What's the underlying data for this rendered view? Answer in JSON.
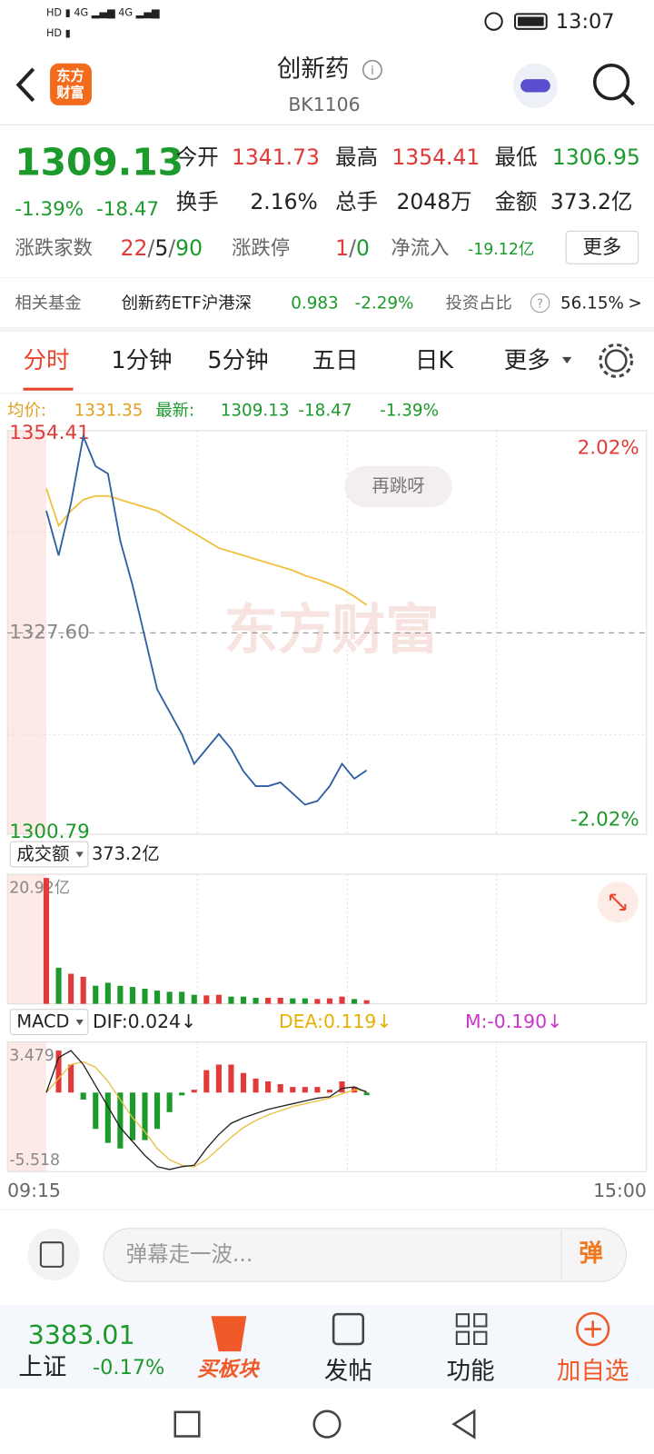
{
  "status_bar": {
    "time": "13:07"
  },
  "header": {
    "logo": [
      "东方",
      "财富"
    ],
    "title": "创新药",
    "code": "BK1106"
  },
  "quote": {
    "price": "1309.13",
    "change_pct": "-1.39%",
    "change": "-18.47",
    "fields": [
      {
        "label": "今开",
        "value": "1341.73"
      },
      {
        "label": "最高",
        "value": "1354.41"
      },
      {
        "label": "最低",
        "value": "1306.95"
      },
      {
        "label": "换手",
        "value": "2.16%"
      },
      {
        "label": "总手",
        "value": "2048万"
      },
      {
        "label": "金额",
        "value": "373.2亿"
      }
    ],
    "breadth": {
      "label": "涨跌家数",
      "up": "22",
      "flat": "5",
      "down": "90",
      "separator": "/"
    },
    "limits": {
      "label": "涨跌停",
      "up": "1",
      "down": "0",
      "separator": "/"
    },
    "net_inflow": {
      "label": "净流入",
      "value": "-19.12亿"
    },
    "more_button": "更多"
  },
  "fund": {
    "label": "相关基金",
    "name": "创新药ETF沪港深",
    "price": "0.983",
    "change_pct": "-2.29%",
    "ratio_label": "投资占比",
    "help": "?",
    "ratio": "56.15%",
    "arrow": ">"
  },
  "tabs": [
    "分时",
    "1分钟",
    "5分钟",
    "五日",
    "日K",
    "更多"
  ],
  "info_line": {
    "avg_label": "均价:",
    "avg": "1331.35",
    "latest_label": "最新:",
    "latest": "1309.13",
    "change": "-18.47",
    "change_pct": "-1.39%"
  },
  "price_chart": {
    "ylim": [
      1300.79,
      1354.41
    ],
    "yticks": [
      1354.41,
      {
        "value": 1327.6,
        "label": "1327.60"
      },
      1300.79
    ],
    "right_ticks": [
      "2.02%",
      "-2.02%"
    ],
    "watermark": "东方财富",
    "bubble": "再跳呀",
    "price": [
      1344,
      1338,
      1345,
      1354,
      1350,
      1349,
      1340,
      1334,
      1327,
      1320,
      1317,
      1314,
      1310,
      1312,
      1314,
      1312,
      1309,
      1307,
      1307,
      1307.5,
      1306,
      1304.5,
      1305,
      1307,
      1310,
      1308,
      1309.13
    ],
    "avg": [
      1347,
      1342,
      1344,
      1345.5,
      1346,
      1346,
      1345.5,
      1345,
      1344.5,
      1344,
      1343,
      1342,
      1341,
      1340,
      1339,
      1338.5,
      1338,
      1337.5,
      1337,
      1336.5,
      1336,
      1335.3,
      1334.8,
      1334.2,
      1333.5,
      1332.5,
      1331.35
    ]
  },
  "volume_chart": {
    "label": "成交额",
    "total": "373.2亿",
    "ylim": [
      0,
      20.92
    ],
    "yticks": [
      {
        "value": 20.92,
        "label": "20.92亿"
      }
    ],
    "values": [
      20.92,
      6,
      5,
      4.5,
      3,
      3.5,
      3,
      2.8,
      2.5,
      2.2,
      2,
      2,
      1.5,
      1.4,
      1.5,
      1.2,
      1.2,
      1,
      1,
      1,
      0.9,
      0.9,
      0.8,
      0.9,
      1.2,
      0.8,
      0.6
    ]
  },
  "macd_chart": {
    "label": "MACD",
    "dif_label": "DIF:0.024↓",
    "dea_label": "DEA:0.119↓",
    "m_label": "M:-0.190↓",
    "ylim": [
      -5.518,
      3.479
    ],
    "yticks": [
      3.479,
      -5.518
    ],
    "dif": [
      0,
      2.5,
      3,
      2,
      0.5,
      -1,
      -2.5,
      -3.5,
      -4.5,
      -5.3,
      -5.5,
      -5.3,
      -5.2,
      -4,
      -3,
      -2.2,
      -1.8,
      -1.5,
      -1.2,
      -1,
      -0.8,
      -0.6,
      -0.4,
      -0.3,
      0.3,
      0.4,
      0.024
    ],
    "dea": [
      0,
      1,
      2,
      2.2,
      1.8,
      0.8,
      -0.5,
      -1.8,
      -2.8,
      -4,
      -4.8,
      -5.2,
      -5.3,
      -4.8,
      -4,
      -3.2,
      -2.5,
      -2,
      -1.6,
      -1.3,
      -1,
      -0.8,
      -0.6,
      -0.4,
      -0.1,
      0.2,
      0.119
    ],
    "m": [
      0,
      3,
      2,
      -0.5,
      -2.6,
      -3.6,
      -4,
      -3.4,
      -3.4,
      -2.6,
      -1.4,
      -0.2,
      0.2,
      1.6,
      2,
      2,
      1.4,
      1,
      0.8,
      0.6,
      0.4,
      0.4,
      0.4,
      0.2,
      0.8,
      0.4,
      -0.19
    ]
  },
  "time_axis": [
    "09:15",
    "15:00"
  ],
  "comment": {
    "placeholder": "弹幕走一波...",
    "send": "弹"
  },
  "bottom_bar": {
    "index_value": "3383.01",
    "index_name": "上证",
    "index_change": "-0.17%",
    "items": [
      "买板块",
      "发帖",
      "功能",
      "加自选"
    ]
  }
}
